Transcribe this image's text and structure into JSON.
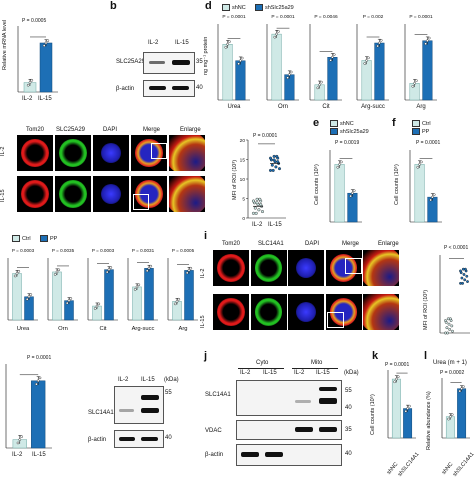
{
  "colors": {
    "light": "#cfe9e6",
    "dark": "#1d6fb5",
    "lightStroke": "#6fa9a5",
    "darkStroke": "#124a7a"
  },
  "panels": {
    "a": "a",
    "b": "b",
    "d": "d",
    "e": "e",
    "f": "f",
    "i": "i",
    "j": "j",
    "k": "k",
    "l": "l"
  },
  "chart_data": [
    {
      "type": "bar",
      "panel": "a",
      "ylabel": "Relative mRNA level",
      "categories": [
        "IL-2",
        "IL-15"
      ],
      "values": [
        1.0,
        5.2
      ],
      "pvalue": "P = 0.0005",
      "ylim": [
        0,
        7
      ]
    },
    {
      "type": "bar",
      "panel": "d",
      "ylabel": "ng mg⁻¹ protein",
      "legend": [
        "shNC",
        "shSlc25a29"
      ],
      "groups": [
        {
          "name": "Urea",
          "pvalue": "P = 0.0001",
          "values": [
            44,
            31
          ],
          "ylim": [
            0,
            60
          ]
        },
        {
          "name": "Orn",
          "pvalue": "P = 0.0001",
          "values": [
            78,
            30
          ],
          "ylim": [
            0,
            90
          ]
        },
        {
          "name": "Cit",
          "pvalue": "P = 0.0046",
          "values": [
            16,
            45
          ],
          "ylim": [
            0,
            80
          ]
        },
        {
          "name": "Arg-succ",
          "pvalue": "P = 0.002",
          "values": [
            52,
            75
          ],
          "ylim": [
            0,
            100
          ]
        },
        {
          "name": "Arg",
          "pvalue": "P = 0.0001",
          "values": [
            22,
            78
          ],
          "ylim": [
            0,
            100
          ]
        }
      ]
    },
    {
      "type": "scatter",
      "panel": "mfi-top",
      "ylabel": "MFI of ROI (10³)",
      "categories": [
        "IL-2",
        "IL-15"
      ],
      "values": [
        3,
        14
      ],
      "pvalue": "P = 0.0001",
      "ylim": [
        0,
        20
      ]
    },
    {
      "type": "bar",
      "panel": "e",
      "ylabel": "Cell counts (10⁵)",
      "legend": [
        "shNC",
        "shSlc25a29"
      ],
      "categories": [
        "shNC",
        "shSlc25a29"
      ],
      "values": [
        4.8,
        2.4
      ],
      "pvalue": "P = 0.0019",
      "ylim": [
        0,
        6
      ]
    },
    {
      "type": "bar",
      "panel": "f",
      "ylabel": "Cell counts (10⁵)",
      "legend": [
        "Ctrl",
        "PP"
      ],
      "categories": [
        "Ctrl",
        "PP"
      ],
      "values": [
        8.8,
        3.8
      ],
      "pvalue": "P = 0.0001",
      "ylim": [
        0,
        11
      ]
    },
    {
      "type": "bar",
      "panel": "h",
      "legend": [
        "Ctrl",
        "PP"
      ],
      "groups": [
        {
          "name": "Urea",
          "pvalue": "P = 0.0003",
          "values": [
            60,
            30
          ],
          "ylim": [
            0,
            80
          ]
        },
        {
          "name": "Orn",
          "pvalue": "P = 0.0035",
          "values": [
            62,
            25
          ],
          "ylim": [
            0,
            80
          ]
        },
        {
          "name": "Cit",
          "pvalue": "P = 0.0003",
          "values": [
            18,
            65
          ],
          "ylim": [
            0,
            80
          ]
        },
        {
          "name": "Arg-succ",
          "pvalue": "P = 0.0031",
          "values": [
            48,
            75
          ],
          "ylim": [
            0,
            90
          ]
        },
        {
          "name": "Arg",
          "pvalue": "P = 0.0005",
          "values": [
            30,
            80
          ],
          "ylim": [
            0,
            100
          ]
        }
      ]
    },
    {
      "type": "scatter",
      "panel": "mfi-i",
      "ylabel": "MFI of ROI (10³)",
      "categories": [
        "IL-2",
        "IL-15"
      ],
      "values": [
        2,
        16
      ],
      "pvalue": "P < 0.0001",
      "ylim": [
        0,
        22
      ]
    },
    {
      "type": "bar",
      "panel": "bottom-left",
      "categories": [
        "IL-2",
        "IL-15"
      ],
      "values": [
        1.0,
        8.0
      ],
      "pvalue": "P = 0.0001",
      "ylim": [
        0,
        10
      ]
    },
    {
      "type": "bar",
      "panel": "k",
      "ylabel": "Cell counts (10⁵)",
      "categories": [
        "shNC",
        "shSLC14A1"
      ],
      "values": [
        5.2,
        2.6
      ],
      "pvalue": "P = 0.0001",
      "ylim": [
        0,
        6
      ]
    },
    {
      "type": "bar",
      "panel": "l",
      "title": "Urea (m + 1)",
      "ylabel": "Relative abundance (%)",
      "categories": [
        "shNC",
        "shSLC14A1"
      ],
      "values": [
        1.6,
        3.7
      ],
      "pvalue": "P = 0.0002",
      "ylim": [
        0,
        4.5
      ]
    }
  ],
  "a": {
    "ylabel": "Relative mRNA level",
    "pvalue": "P = 0.0005",
    "cat1": "IL-2",
    "cat2": "IL-15"
  },
  "b": {
    "header1": "IL-2",
    "header2": "IL-15",
    "protein": "SLC25A29",
    "loading": "β-actin",
    "mw1": "35",
    "mw2": "40"
  },
  "d": {
    "legend1": "shNC",
    "legend2": "shSlc25a29",
    "ylabel": "ng mg⁻¹ protein"
  },
  "imaging_top": {
    "channels": [
      "Tom20",
      "SLC25A29",
      "DAPI",
      "Merge",
      "Enlarge"
    ],
    "rows": [
      "IL-2",
      "IL-15"
    ]
  },
  "mfi_top": {
    "ylabel": "MFI of ROI (10³)",
    "pvalue": "P = 0.0001",
    "cat1": "IL-2",
    "cat2": "IL-15",
    "ticks": [
      "0",
      "5",
      "10",
      "15",
      "20"
    ]
  },
  "e": {
    "legend1": "shNC",
    "legend2": "shSlc25a29",
    "pvalue": "P = 0.0019",
    "ylabel": "Cell counts (10⁵)"
  },
  "f": {
    "legend1": "Ctrl",
    "legend2": "PP",
    "pvalue": "P = 0.0001",
    "ylabel": "Cell counts (10⁵)"
  },
  "h": {
    "legend1": "Ctrl",
    "legend2": "PP"
  },
  "imaging_i": {
    "channels": [
      "Tom20",
      "SLC14A1",
      "DAPI",
      "Merge",
      "Enlarge"
    ],
    "rows": [
      "IL-2",
      "IL-15"
    ]
  },
  "mfi_i": {
    "pvalue": "P < 0.0001",
    "ylabel": "MFI of ROI (10³)"
  },
  "bottom_left": {
    "pvalue": "P = 0.0001",
    "cat1": "IL-2",
    "cat2": "IL-15"
  },
  "blot_bl": {
    "header1": "IL-2",
    "header2": "IL-15",
    "kda": "(kDa)",
    "protein": "SLC14A1",
    "loading": "β-actin",
    "mw1": "55",
    "mw2": "40"
  },
  "j": {
    "group1": "Cyto",
    "group2": "Mito",
    "lane1": "IL-2",
    "lane2": "IL-15",
    "lane3": "IL-2",
    "lane4": "IL-15",
    "kda": "(kDa)",
    "protein1": "SLC14A1",
    "protein2": "VDAC",
    "protein3": "β-actin",
    "mw1": "55",
    "mw2": "40",
    "mw3": "35",
    "mw4": "40"
  },
  "k": {
    "pvalue": "P = 0.0001",
    "ylabel": "Cell counts (10⁵)",
    "cat1": "shNC",
    "cat2": "shSLC14A1"
  },
  "l": {
    "title": "Urea (m + 1)",
    "pvalue": "P = 0.0002",
    "ylabel": "Relative abundance (%)",
    "cat1": "shNC",
    "cat2": "shSLC14A1"
  }
}
